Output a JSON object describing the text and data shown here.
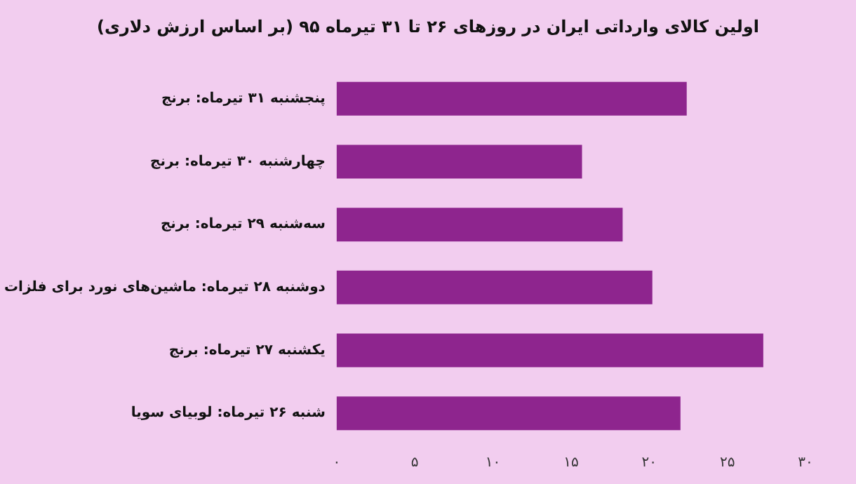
{
  "chart_data": {
    "type": "bar",
    "orientation": "horizontal",
    "title": "اولین کالای وارداتی ایران در روزهای ۲۶ تا ۳۱ تیرماه ۹۵ (بر اساس ارزش دلاری)",
    "categories": [
      "پنجشنبه ۳۱ تیرماه: برنج",
      "چهارشنبه ۳۰ تیرماه: برنج",
      "سه‌شنبه ۲۹ تیرماه: برنج",
      "دوشنبه ۲۸ تیرماه: ماشین‌های نورد برای فلزات",
      "یکشنبه ۲۷ تیرماه: برنج",
      "شنبه ۲۶ تیرماه: لوبیای سویا"
    ],
    "values": [
      22.4,
      15.7,
      18.3,
      20.2,
      27.3,
      22.0
    ],
    "color": "#8e258e",
    "xlim": [
      0,
      30
    ],
    "xticks": [
      {
        "value": 0,
        "label": "۰"
      },
      {
        "value": 5,
        "label": "۵"
      },
      {
        "value": 10,
        "label": "۱۰"
      },
      {
        "value": 15,
        "label": "۱۵"
      },
      {
        "value": 20,
        "label": "۲۰"
      },
      {
        "value": 25,
        "label": "۲۵"
      },
      {
        "value": 30,
        "label": "۳۰"
      }
    ],
    "grid": false
  }
}
